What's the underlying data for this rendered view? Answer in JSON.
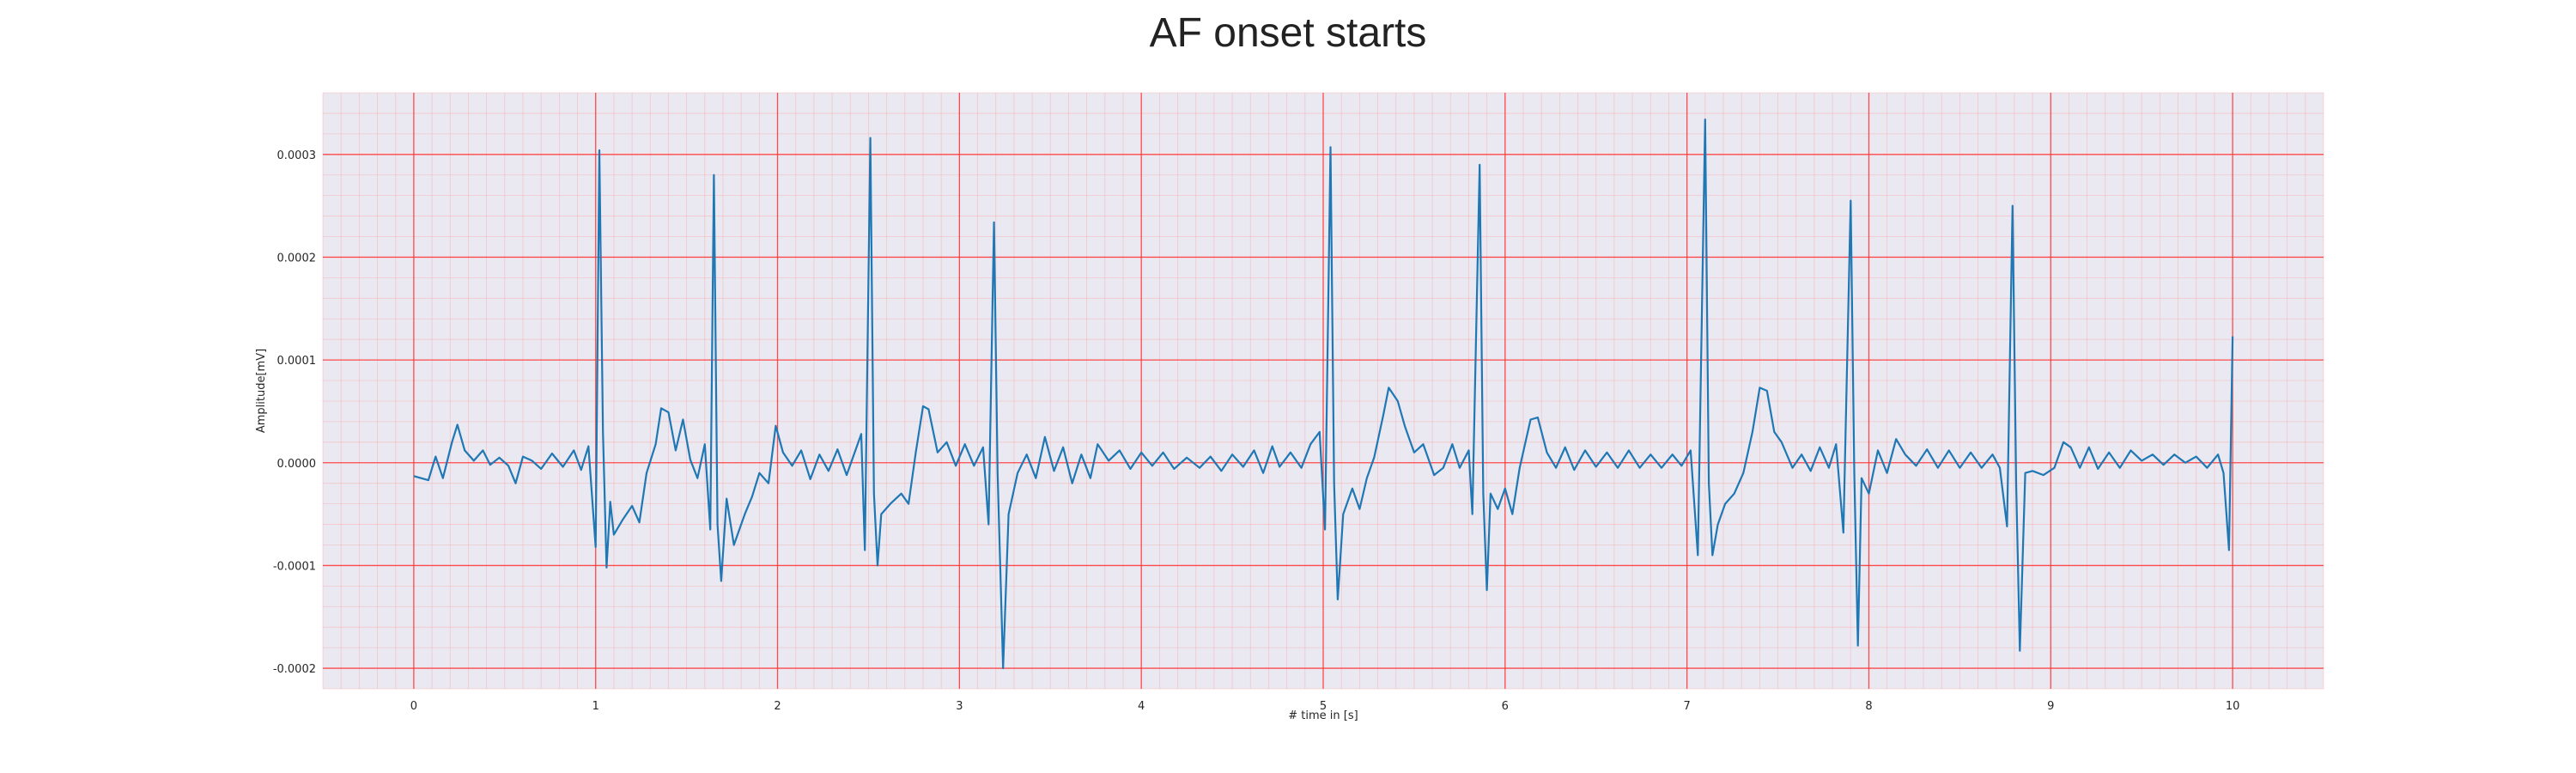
{
  "chart_data": {
    "type": "line",
    "title": "AF onset starts",
    "xlabel": "# time in [s]",
    "ylabel": "Amplitude[mV]",
    "xlim": [
      -0.5,
      10.5
    ],
    "ylim": [
      -0.00022,
      0.00036
    ],
    "x_ticks": [
      0,
      1,
      2,
      3,
      4,
      5,
      6,
      7,
      8,
      9,
      10
    ],
    "x_tick_labels": [
      "0",
      "1",
      "2",
      "3",
      "4",
      "5",
      "6",
      "7",
      "8",
      "9",
      "10"
    ],
    "y_ticks": [
      -0.0002,
      -0.0001,
      0.0,
      0.0001,
      0.0002,
      0.0003
    ],
    "y_tick_labels": [
      "-0.0002",
      "-0.0001",
      "0.0000",
      "0.0001",
      "0.0002",
      "0.0003"
    ],
    "grid": true,
    "minor_grid": true,
    "series": [
      {
        "color": "#1f77b4",
        "points": [
          [
            0.0,
            -1.3e-05
          ],
          [
            0.08,
            -1.7e-05
          ],
          [
            0.12,
            6e-06
          ],
          [
            0.16,
            -1.5e-05
          ],
          [
            0.21,
            2e-05
          ],
          [
            0.24,
            3.7e-05
          ],
          [
            0.28,
            1.2e-05
          ],
          [
            0.33,
            2e-06
          ],
          [
            0.38,
            1.2e-05
          ],
          [
            0.42,
            -2e-06
          ],
          [
            0.47,
            5e-06
          ],
          [
            0.52,
            -3e-06
          ],
          [
            0.56,
            -2e-05
          ],
          [
            0.6,
            6e-06
          ],
          [
            0.65,
            2e-06
          ],
          [
            0.7,
            -6e-06
          ],
          [
            0.76,
            9e-06
          ],
          [
            0.82,
            -4e-06
          ],
          [
            0.88,
            1.2e-05
          ],
          [
            0.92,
            -7e-06
          ],
          [
            0.96,
            1.6e-05
          ],
          [
            1.0,
            -8.2e-05
          ],
          [
            1.02,
            0.000304
          ],
          [
            1.04,
            3e-05
          ],
          [
            1.06,
            -0.000102
          ],
          [
            1.08,
            -3.8e-05
          ],
          [
            1.1,
            -7e-05
          ],
          [
            1.15,
            -5.5e-05
          ],
          [
            1.2,
            -4.2e-05
          ],
          [
            1.24,
            -5.8e-05
          ],
          [
            1.28,
            -1e-05
          ],
          [
            1.33,
            1.8e-05
          ],
          [
            1.36,
            5.3e-05
          ],
          [
            1.4,
            4.9e-05
          ],
          [
            1.44,
            1.2e-05
          ],
          [
            1.48,
            4.2e-05
          ],
          [
            1.52,
            3e-06
          ],
          [
            1.56,
            -1.5e-05
          ],
          [
            1.6,
            1.8e-05
          ],
          [
            1.63,
            -6.5e-05
          ],
          [
            1.65,
            0.00028
          ],
          [
            1.67,
            -6e-05
          ],
          [
            1.69,
            -0.000115
          ],
          [
            1.72,
            -3.5e-05
          ],
          [
            1.76,
            -8e-05
          ],
          [
            1.82,
            -5e-05
          ],
          [
            1.86,
            -3.3e-05
          ],
          [
            1.9,
            -1e-05
          ],
          [
            1.95,
            -2e-05
          ],
          [
            1.99,
            3.6e-05
          ],
          [
            2.03,
            1e-05
          ],
          [
            2.08,
            -3e-06
          ],
          [
            2.13,
            1.2e-05
          ],
          [
            2.18,
            -1.6e-05
          ],
          [
            2.23,
            8e-06
          ],
          [
            2.28,
            -8e-06
          ],
          [
            2.33,
            1.3e-05
          ],
          [
            2.38,
            -1.2e-05
          ],
          [
            2.42,
            8e-06
          ],
          [
            2.46,
            2.8e-05
          ],
          [
            2.48,
            -8.5e-05
          ],
          [
            2.51,
            0.000316
          ],
          [
            2.53,
            -3e-05
          ],
          [
            2.55,
            -0.0001
          ],
          [
            2.57,
            -5e-05
          ],
          [
            2.62,
            -4e-05
          ],
          [
            2.68,
            -3e-05
          ],
          [
            2.72,
            -4e-05
          ],
          [
            2.76,
            1e-05
          ],
          [
            2.8,
            5.5e-05
          ],
          [
            2.83,
            5.2e-05
          ],
          [
            2.88,
            1e-05
          ],
          [
            2.93,
            2e-05
          ],
          [
            2.98,
            -3e-06
          ],
          [
            3.03,
            1.8e-05
          ],
          [
            3.08,
            -3e-06
          ],
          [
            3.13,
            1.5e-05
          ],
          [
            3.16,
            -6e-05
          ],
          [
            3.19,
            0.000234
          ],
          [
            3.21,
            -1e-05
          ],
          [
            3.24,
            -0.0002
          ],
          [
            3.27,
            -5e-05
          ],
          [
            3.32,
            -1e-05
          ],
          [
            3.37,
            8e-06
          ],
          [
            3.42,
            -1.5e-05
          ],
          [
            3.47,
            2.5e-05
          ],
          [
            3.52,
            -8e-06
          ],
          [
            3.57,
            1.5e-05
          ],
          [
            3.62,
            -2e-05
          ],
          [
            3.67,
            8e-06
          ],
          [
            3.72,
            -1.5e-05
          ],
          [
            3.76,
            1.8e-05
          ],
          [
            3.82,
            2e-06
          ],
          [
            3.88,
            1.2e-05
          ],
          [
            3.94,
            -6e-06
          ],
          [
            4.0,
            1e-05
          ],
          [
            4.06,
            -3e-06
          ],
          [
            4.12,
            1e-05
          ],
          [
            4.18,
            -6e-06
          ],
          [
            4.25,
            5e-06
          ],
          [
            4.32,
            -5e-06
          ],
          [
            4.38,
            6e-06
          ],
          [
            4.44,
            -8e-06
          ],
          [
            4.5,
            8e-06
          ],
          [
            4.56,
            -4e-06
          ],
          [
            4.62,
            1.2e-05
          ],
          [
            4.67,
            -1e-05
          ],
          [
            4.72,
            1.6e-05
          ],
          [
            4.76,
            -4e-06
          ],
          [
            4.82,
            1e-05
          ],
          [
            4.88,
            -5e-06
          ],
          [
            4.93,
            1.8e-05
          ],
          [
            4.98,
            3e-05
          ],
          [
            5.01,
            -6.5e-05
          ],
          [
            5.04,
            0.000307
          ],
          [
            5.06,
            -2e-05
          ],
          [
            5.08,
            -0.000133
          ],
          [
            5.11,
            -5e-05
          ],
          [
            5.16,
            -2.5e-05
          ],
          [
            5.2,
            -4.5e-05
          ],
          [
            5.24,
            -1.5e-05
          ],
          [
            5.28,
            5e-06
          ],
          [
            5.33,
            4.6e-05
          ],
          [
            5.36,
            7.3e-05
          ],
          [
            5.41,
            6e-05
          ],
          [
            5.45,
            3.5e-05
          ],
          [
            5.5,
            1e-05
          ],
          [
            5.55,
            1.8e-05
          ],
          [
            5.61,
            -1.2e-05
          ],
          [
            5.66,
            -5e-06
          ],
          [
            5.71,
            1.8e-05
          ],
          [
            5.75,
            -5e-06
          ],
          [
            5.8,
            1.2e-05
          ],
          [
            5.82,
            -5e-05
          ],
          [
            5.86,
            0.00029
          ],
          [
            5.88,
            -3e-05
          ],
          [
            5.9,
            -0.000124
          ],
          [
            5.92,
            -3e-05
          ],
          [
            5.96,
            -4.5e-05
          ],
          [
            6.0,
            -2.5e-05
          ],
          [
            6.04,
            -5e-05
          ],
          [
            6.08,
            -5e-06
          ],
          [
            6.14,
            4.2e-05
          ],
          [
            6.18,
            4.4e-05
          ],
          [
            6.23,
            1e-05
          ],
          [
            6.28,
            -5e-06
          ],
          [
            6.33,
            1.5e-05
          ],
          [
            6.38,
            -7e-06
          ],
          [
            6.44,
            1.2e-05
          ],
          [
            6.5,
            -4e-06
          ],
          [
            6.56,
            1e-05
          ],
          [
            6.62,
            -5e-06
          ],
          [
            6.68,
            1.2e-05
          ],
          [
            6.74,
            -5e-06
          ],
          [
            6.8,
            8e-06
          ],
          [
            6.86,
            -5e-06
          ],
          [
            6.92,
            8e-06
          ],
          [
            6.97,
            -3e-06
          ],
          [
            7.02,
            1.2e-05
          ],
          [
            7.06,
            -9e-05
          ],
          [
            7.1,
            0.000334
          ],
          [
            7.12,
            -2e-05
          ],
          [
            7.14,
            -9e-05
          ],
          [
            7.17,
            -6e-05
          ],
          [
            7.21,
            -4e-05
          ],
          [
            7.26,
            -3e-05
          ],
          [
            7.31,
            -1e-05
          ],
          [
            7.36,
            3e-05
          ],
          [
            7.4,
            7.3e-05
          ],
          [
            7.44,
            7e-05
          ],
          [
            7.48,
            3e-05
          ],
          [
            7.52,
            2e-05
          ],
          [
            7.58,
            -5e-06
          ],
          [
            7.63,
            8e-06
          ],
          [
            7.68,
            -8e-06
          ],
          [
            7.73,
            1.5e-05
          ],
          [
            7.78,
            -5e-06
          ],
          [
            7.82,
            1.8e-05
          ],
          [
            7.86,
            -6.8e-05
          ],
          [
            7.9,
            0.000255
          ],
          [
            7.92,
            -1e-05
          ],
          [
            7.94,
            -0.000178
          ],
          [
            7.96,
            -1.5e-05
          ],
          [
            8.0,
            -3e-05
          ],
          [
            8.05,
            1.2e-05
          ],
          [
            8.1,
            -1e-05
          ],
          [
            8.15,
            2.3e-05
          ],
          [
            8.2,
            8e-06
          ],
          [
            8.26,
            -3e-06
          ],
          [
            8.32,
            1.3e-05
          ],
          [
            8.38,
            -5e-06
          ],
          [
            8.44,
            1.2e-05
          ],
          [
            8.5,
            -5e-06
          ],
          [
            8.56,
            1e-05
          ],
          [
            8.62,
            -5e-06
          ],
          [
            8.68,
            8e-06
          ],
          [
            8.72,
            -5e-06
          ],
          [
            8.76,
            -6.2e-05
          ],
          [
            8.79,
            0.00025
          ],
          [
            8.81,
            -2e-05
          ],
          [
            8.83,
            -0.000183
          ],
          [
            8.86,
            -1e-05
          ],
          [
            8.9,
            -8e-06
          ],
          [
            8.96,
            -1.2e-05
          ],
          [
            9.02,
            -5e-06
          ],
          [
            9.07,
            2e-05
          ],
          [
            9.11,
            1.5e-05
          ],
          [
            9.16,
            -5e-06
          ],
          [
            9.21,
            1.5e-05
          ],
          [
            9.26,
            -6e-06
          ],
          [
            9.32,
            1e-05
          ],
          [
            9.38,
            -5e-06
          ],
          [
            9.44,
            1.2e-05
          ],
          [
            9.5,
            2e-06
          ],
          [
            9.56,
            8e-06
          ],
          [
            9.62,
            -2e-06
          ],
          [
            9.68,
            8e-06
          ],
          [
            9.74,
            0.0
          ],
          [
            9.8,
            6e-06
          ],
          [
            9.86,
            -5e-06
          ],
          [
            9.92,
            8e-06
          ],
          [
            9.95,
            -1e-05
          ],
          [
            9.98,
            -8.5e-05
          ],
          [
            10.0,
            0.000123
          ]
        ]
      }
    ]
  }
}
